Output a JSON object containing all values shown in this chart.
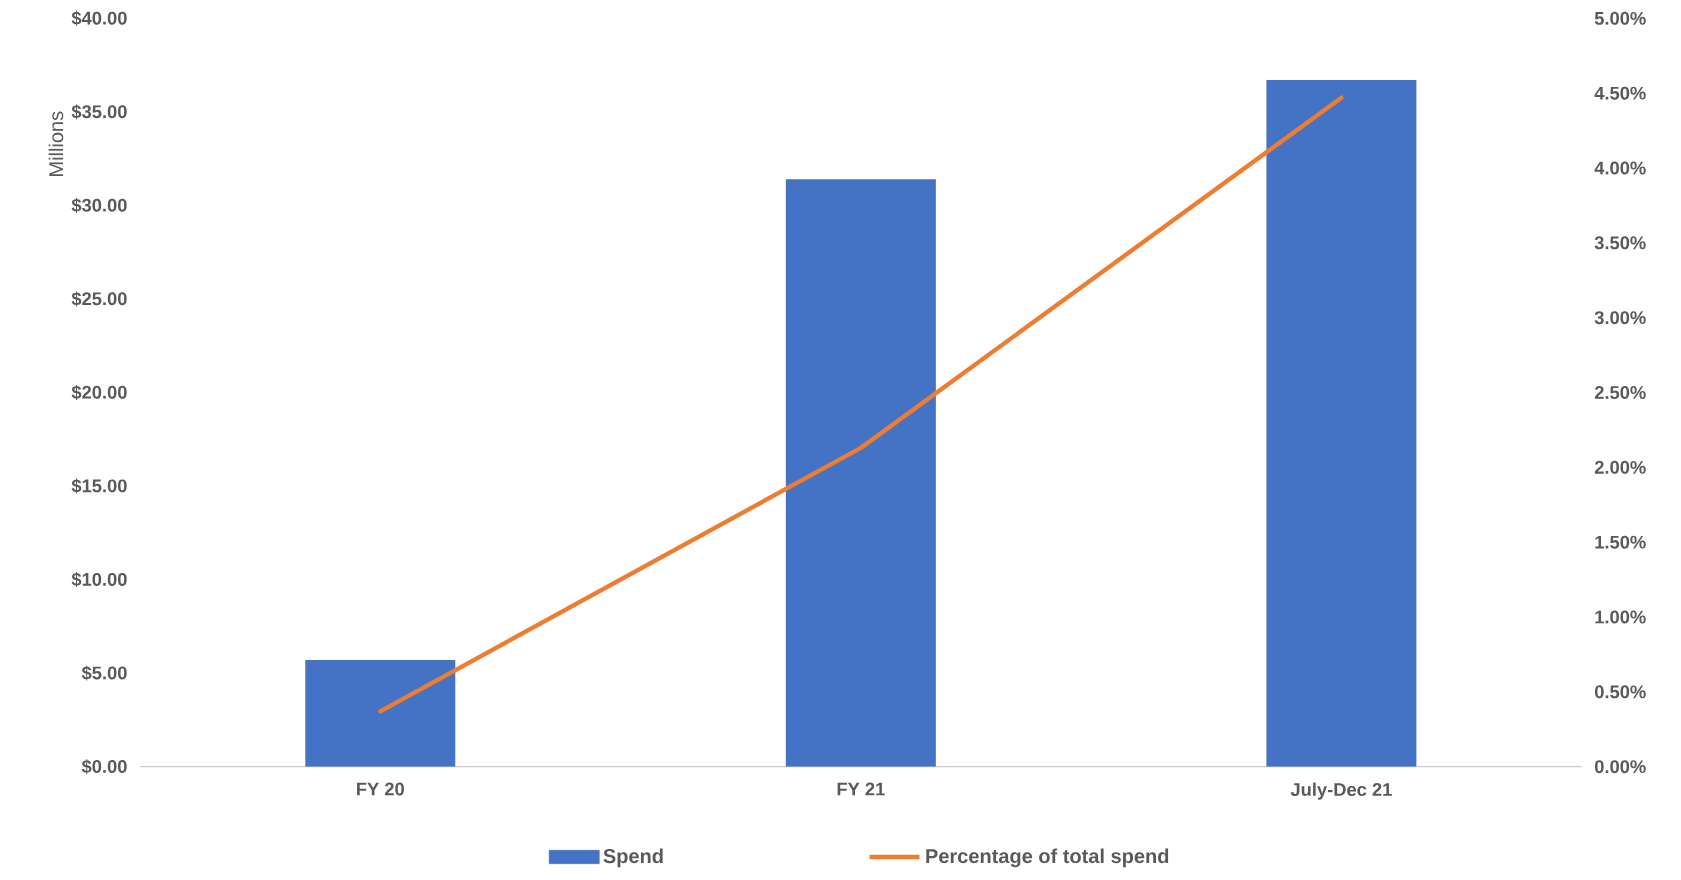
{
  "chart_data": {
    "type": "bar",
    "ylabel": "Millions",
    "categories": [
      "FY 20",
      "FY 21",
      "July-Dec 21"
    ],
    "series": [
      {
        "name": "Spend",
        "color": "#4472c4",
        "values": [
          5.7,
          31.4,
          36.7
        ]
      },
      {
        "name": "Percentage of total spend",
        "type": "line",
        "axis": "y2",
        "color": "#ed7d31",
        "values": [
          0.37,
          2.13,
          4.47
        ]
      }
    ],
    "ylim": [
      0,
      40
    ],
    "yticks": [
      {
        "value": 0,
        "label": "$0.00"
      },
      {
        "value": 5,
        "label": "$5.00"
      },
      {
        "value": 10,
        "label": "$10.00"
      },
      {
        "value": 15,
        "label": "$15.00"
      },
      {
        "value": 20,
        "label": "$20.00"
      },
      {
        "value": 25,
        "label": "$25.00"
      },
      {
        "value": 30,
        "label": "$30.00"
      },
      {
        "value": 35,
        "label": "$35.00"
      },
      {
        "value": 40,
        "label": "$40.00"
      }
    ],
    "y2lim": [
      0,
      5
    ],
    "y2ticks": [
      {
        "value": 0,
        "label": "0.00%"
      },
      {
        "value": 0.5,
        "label": "0.50%"
      },
      {
        "value": 1,
        "label": "1.00%"
      },
      {
        "value": 1.5,
        "label": "1.50%"
      },
      {
        "value": 2,
        "label": "2.00%"
      },
      {
        "value": 2.5,
        "label": "2.50%"
      },
      {
        "value": 3,
        "label": "3.00%"
      },
      {
        "value": 3.5,
        "label": "3.50%"
      },
      {
        "value": 4,
        "label": "4.00%"
      },
      {
        "value": 4.5,
        "label": "4.50%"
      },
      {
        "value": 5,
        "label": "5.00%"
      }
    ],
    "legend": "bottom"
  }
}
